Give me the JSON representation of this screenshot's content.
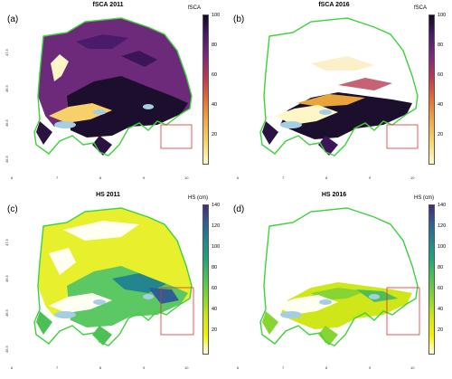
{
  "panels": [
    {
      "label": "(a)",
      "title": "fSCA 2011",
      "colorbar_title": "fSCA",
      "colorbar_ticks": [
        "100",
        "80",
        "60",
        "40",
        "20"
      ],
      "style": "dense-fsca",
      "colormap": "magma-reversed"
    },
    {
      "label": "(b)",
      "title": "fSCA 2016",
      "colorbar_title": "fSCA",
      "colorbar_ticks": [
        "100",
        "80",
        "60",
        "40",
        "20"
      ],
      "style": "sparse-fsca",
      "colormap": "magma-reversed"
    },
    {
      "label": "(c)",
      "title": "HS 2011",
      "colorbar_title": "HS (cm)",
      "colorbar_ticks": [
        "140",
        "120",
        "100",
        "80",
        "60",
        "40",
        "20"
      ],
      "style": "dense-hs",
      "colormap": "viridis-reversed"
    },
    {
      "label": "(d)",
      "title": "HS 2016",
      "colorbar_title": "HS (cm)",
      "colorbar_ticks": [
        "140",
        "120",
        "100",
        "80",
        "60",
        "40",
        "20"
      ],
      "style": "sparse-hs",
      "colormap": "viridis-reversed"
    }
  ],
  "axes": {
    "x_ticks": [
      "6",
      "7",
      "8",
      "9",
      "10"
    ],
    "y_ticks": [
      "45.5",
      "46.5",
      "46.5",
      "47.5"
    ]
  },
  "colors": {
    "border": "#3cd23c",
    "lakes": "#a6cee3",
    "box": "#e03030"
  }
}
